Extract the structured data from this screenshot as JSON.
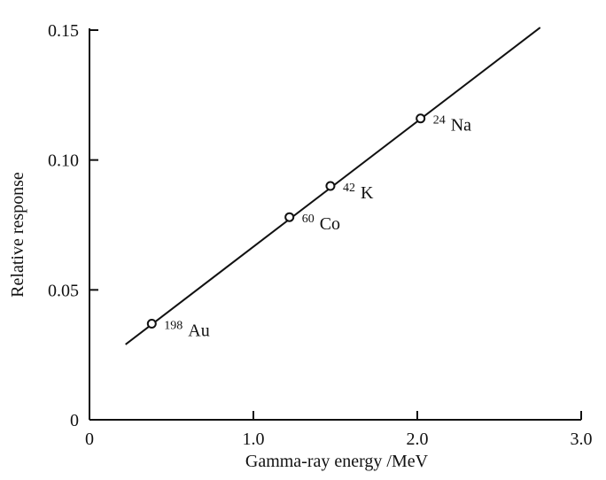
{
  "chart_data": {
    "type": "line",
    "xlabel": "Gamma-ray energy /MeV",
    "ylabel": "Relative response",
    "xlim": [
      0,
      3.0
    ],
    "ylim": [
      0,
      0.15
    ],
    "x_ticks": [
      {
        "value": 0,
        "label": "0"
      },
      {
        "value": 1.0,
        "label": "1.0"
      },
      {
        "value": 2.0,
        "label": "2.0"
      },
      {
        "value": 3.0,
        "label": "3.0"
      }
    ],
    "y_ticks": [
      {
        "value": 0,
        "label": "0"
      },
      {
        "value": 0.05,
        "label": "0.05"
      },
      {
        "value": 0.1,
        "label": "0.10"
      },
      {
        "value": 0.15,
        "label": "0.15"
      }
    ],
    "fit_line": {
      "x": [
        0.22,
        2.75
      ],
      "y": [
        0.029,
        0.151
      ]
    },
    "points": [
      {
        "x": 0.38,
        "y": 0.037,
        "mass": "198",
        "element": "Au"
      },
      {
        "x": 1.22,
        "y": 0.078,
        "mass": "60",
        "element": "Co"
      },
      {
        "x": 1.47,
        "y": 0.09,
        "mass": "42",
        "element": "K"
      },
      {
        "x": 2.02,
        "y": 0.116,
        "mass": "24",
        "element": "Na"
      }
    ],
    "grid": false,
    "colors": {
      "ink": "#111111",
      "background": "#ffffff"
    }
  }
}
